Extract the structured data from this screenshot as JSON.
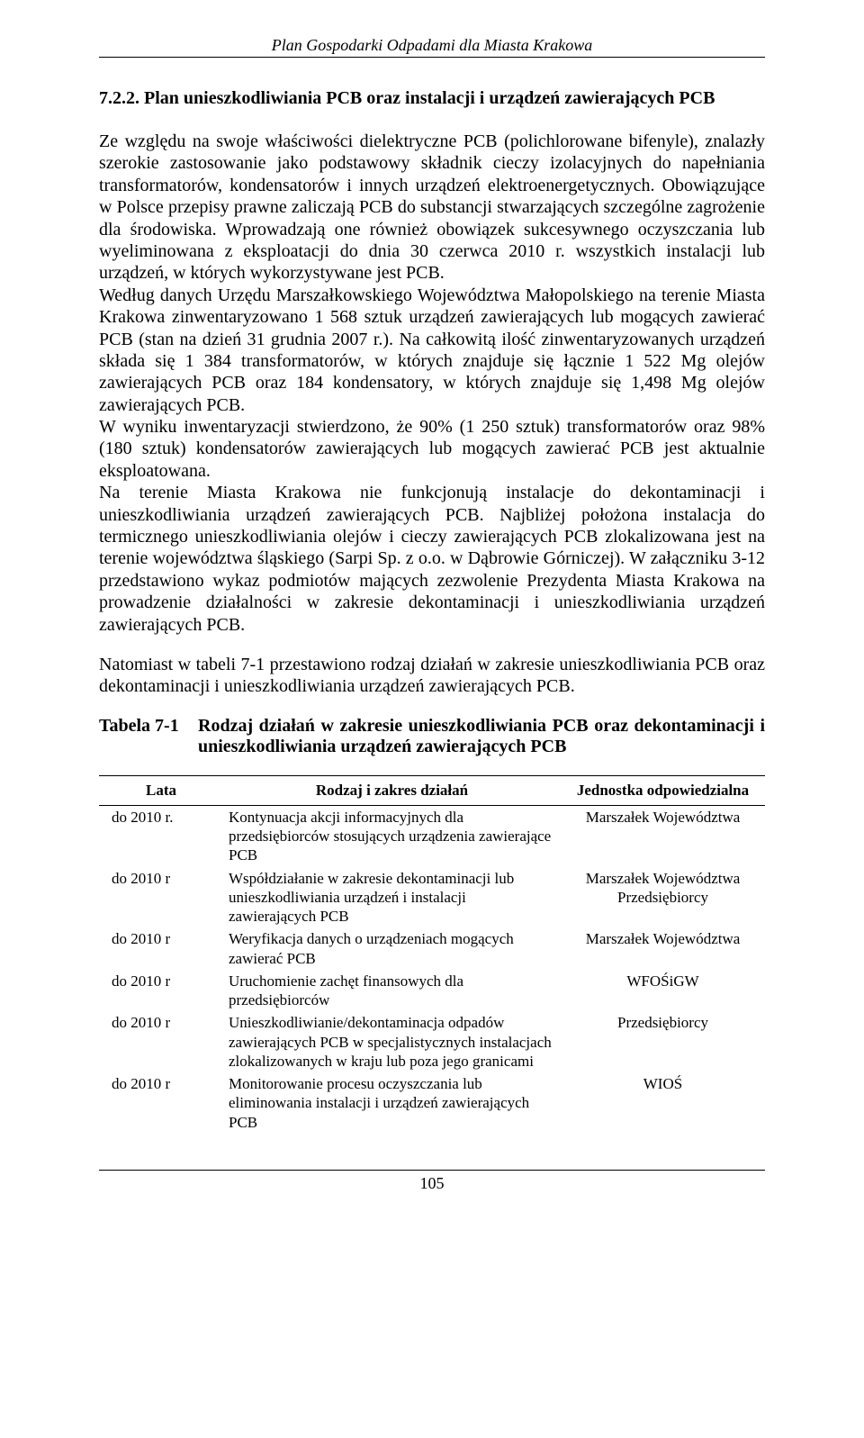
{
  "header": {
    "doc_title": "Plan Gospodarki Odpadami dla Miasta Krakowa"
  },
  "section": {
    "heading": "7.2.2. Plan unieszkodliwiania PCB oraz instalacji i urządzeń zawierających PCB",
    "p1": "Ze względu na swoje właściwości dielektryczne PCB (polichlorowane bifenyle), znalazły szerokie zastosowanie jako podstawowy składnik cieczy izolacyjnych do napełniania transformatorów, kondensatorów i innych urządzeń elektroenergetycznych. Obowiązujące w Polsce przepisy prawne zaliczają PCB do substancji stwarzających szczególne zagrożenie dla środowiska. Wprowadzają one również obowiązek sukcesywnego oczyszczania lub wyeliminowana z eksploatacji do dnia 30 czerwca 2010 r. wszystkich instalacji lub urządzeń, w których wykorzystywane jest PCB.",
    "p2": "Według danych Urzędu Marszałkowskiego Województwa Małopolskiego na terenie Miasta Krakowa zinwentaryzowano 1 568 sztuk urządzeń zawierających lub mogących zawierać PCB (stan na dzień 31 grudnia 2007 r.). Na całkowitą ilość zinwentaryzowanych urządzeń składa się 1 384 transformatorów, w których znajduje się łącznie 1 522 Mg olejów zawierających PCB oraz 184 kondensatory, w których znajduje się 1,498 Mg olejów zawierających PCB.",
    "p3": "W wyniku inwentaryzacji stwierdzono, że 90% (1 250 sztuk) transformatorów oraz 98% (180 sztuk) kondensatorów zawierających lub mogących zawierać PCB jest aktualnie eksploatowana.",
    "p4": "Na terenie Miasta Krakowa nie funkcjonują instalacje do dekontaminacji i unieszkodliwiania urządzeń zawierających PCB. Najbliżej położona instalacja do termicznego unieszkodliwiania olejów i cieczy zawierających PCB zlokalizowana jest na terenie województwa śląskiego (Sarpi Sp. z o.o. w Dąbrowie Górniczej). W załączniku 3-12 przedstawiono wykaz podmiotów mających zezwolenie Prezydenta Miasta Krakowa na prowadzenie działalności w zakresie dekontaminacji i unieszkodliwiania urządzeń zawierających PCB.",
    "p5": "Natomiast w tabeli 7-1 przestawiono rodzaj działań w zakresie unieszkodliwiania PCB oraz dekontaminacji i unieszkodliwiania urządzeń zawierających PCB."
  },
  "table": {
    "caption_label": "Tabela 7-1",
    "caption_text": "Rodzaj działań w zakresie unieszkodliwiania PCB oraz dekontaminacji i unieszkodliwiania urządzeń zawierających PCB",
    "columns": [
      "Lata",
      "Rodzaj i zakres działań",
      "Jednostka odpowiedzialna"
    ],
    "rows": [
      {
        "lata": "do 2010 r.",
        "rodzaj": "Kontynuacja akcji informacyjnych dla przedsiębiorców stosujących urządzenia zawierające PCB",
        "jednostka": "Marszałek Województwa"
      },
      {
        "lata": "do 2010 r",
        "rodzaj": "Współdziałanie w zakresie dekontaminacji lub unieszkodliwiania urządzeń i instalacji zawierających PCB",
        "jednostka": "Marszałek Województwa Przedsiębiorcy"
      },
      {
        "lata": "do 2010 r",
        "rodzaj": "Weryfikacja danych o urządzeniach mogących zawierać PCB",
        "jednostka": "Marszałek Województwa"
      },
      {
        "lata": "do 2010 r",
        "rodzaj": "Uruchomienie zachęt finansowych dla przedsiębiorców",
        "jednostka": "WFOŚiGW"
      },
      {
        "lata": "do 2010 r",
        "rodzaj": "Unieszkodliwianie/dekontaminacja odpadów zawierających PCB w specjalistycznych instalacjach zlokalizowanych w kraju lub poza jego granicami",
        "jednostka": "Przedsiębiorcy"
      },
      {
        "lata": "do 2010 r",
        "rodzaj": "Monitorowanie procesu oczyszczania lub eliminowania instalacji i urządzeń zawierających PCB",
        "jednostka": "WIOŚ"
      }
    ]
  },
  "footer": {
    "page_number": "105"
  }
}
